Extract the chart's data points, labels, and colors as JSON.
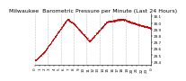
{
  "title": "Milwaukee  Barometric Pressure per Minute (Last 24 Hours)",
  "line_color": "#cc0000",
  "bg_color": "#ffffff",
  "grid_color": "#bbbbbb",
  "ylim": [
    29.35,
    30.15
  ],
  "yticks": [
    29.4,
    29.5,
    29.6,
    29.7,
    29.8,
    29.9,
    30.0,
    30.1
  ],
  "num_points": 1440,
  "seg_points": [
    0.0,
    0.08,
    0.28,
    0.33,
    0.47,
    0.62,
    0.75,
    0.88,
    1.0
  ],
  "seg_values": [
    29.42,
    29.55,
    30.06,
    30.0,
    29.72,
    30.02,
    30.06,
    29.98,
    29.92
  ],
  "title_fontsize": 4.5,
  "tick_fontsize": 3.0,
  "marker_size": 0.8,
  "noise_std": 0.006,
  "num_vgrid": 9,
  "xtick_labels": [
    "0",
    "1",
    "2",
    "3",
    "4",
    "5",
    "6",
    "7",
    "8",
    "9",
    "10",
    "11",
    "12",
    "13",
    "14",
    "15",
    "16",
    "17",
    "18",
    "19",
    "20",
    "21",
    "22",
    "23",
    "0"
  ],
  "num_xticks": 25
}
